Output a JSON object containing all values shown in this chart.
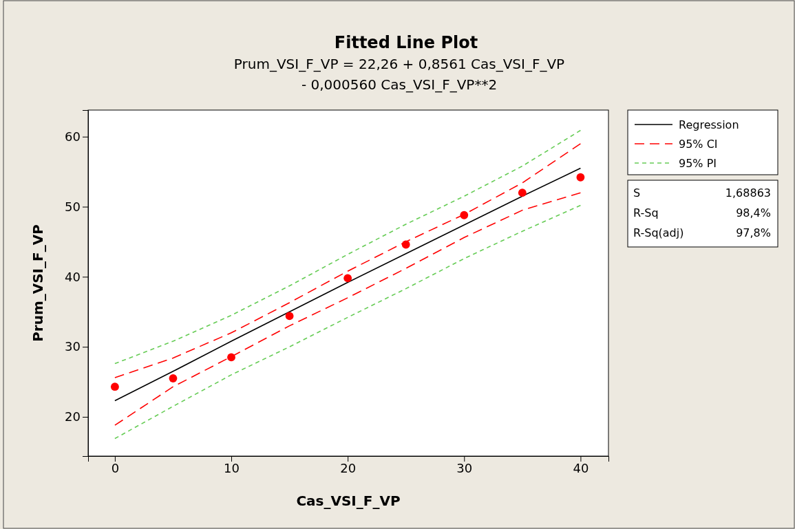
{
  "chart_data": {
    "type": "line",
    "title": "Fitted Line Plot",
    "subtitle": "Prum_VSI_F_VP =  22,26 + 0,8561 Cas_VSI_F_VP\n- 0,000560 Cas_VSI_F_VP**2",
    "xlabel": "Cas_VSI_F_VP",
    "ylabel": "Prum_VSI_F_VP",
    "x": [
      0,
      5,
      10,
      15,
      20,
      25,
      30,
      35,
      40
    ],
    "series": [
      {
        "name": "Regression",
        "color": "#000000",
        "line_style": "solid",
        "marker": "none",
        "values": [
          22.3,
          26.5,
          30.8,
          35.0,
          39.2,
          43.3,
          47.4,
          51.5,
          55.5
        ]
      },
      {
        "name": "95% CI",
        "color": "#ff0000",
        "line_style": "dashed",
        "marker": "none",
        "values": [
          25.6,
          28.4,
          32.0,
          36.3,
          40.8,
          45.0,
          48.9,
          53.4,
          59.0
        ]
      },
      {
        "color": "#ff0000",
        "line_style": "dashed",
        "marker": "none",
        "values": [
          18.8,
          24.3,
          28.6,
          33.0,
          37.0,
          41.2,
          45.6,
          49.5,
          52.0
        ]
      },
      {
        "name": "95% PI",
        "color": "#66cc55",
        "line_style": "dotted",
        "marker": "none",
        "values": [
          27.6,
          30.8,
          34.5,
          38.7,
          43.2,
          47.5,
          51.5,
          55.8,
          60.9
        ]
      },
      {
        "color": "#66cc55",
        "line_style": "dotted",
        "marker": "none",
        "values": [
          16.9,
          21.5,
          26.0,
          30.0,
          34.2,
          38.3,
          42.6,
          46.5,
          50.2
        ]
      },
      {
        "type": "scatter",
        "color": "#ff0000",
        "marker": "circle",
        "values": [
          24.3,
          25.5,
          28.5,
          34.4,
          39.8,
          44.6,
          48.8,
          52.0,
          54.2
        ]
      }
    ],
    "xlim": [
      -2.3,
      42.4
    ],
    "xticks": [
      0,
      10,
      20,
      30,
      40
    ],
    "ylim": [
      14.4,
      63.8
    ],
    "yticks": [
      20,
      30,
      40,
      50,
      60
    ],
    "grid": false,
    "legend": "right",
    "annotations": [
      "S",
      "1,68863",
      "R-Sq",
      "98,4%",
      "R-Sq(adj)",
      "97,8%"
    ]
  }
}
